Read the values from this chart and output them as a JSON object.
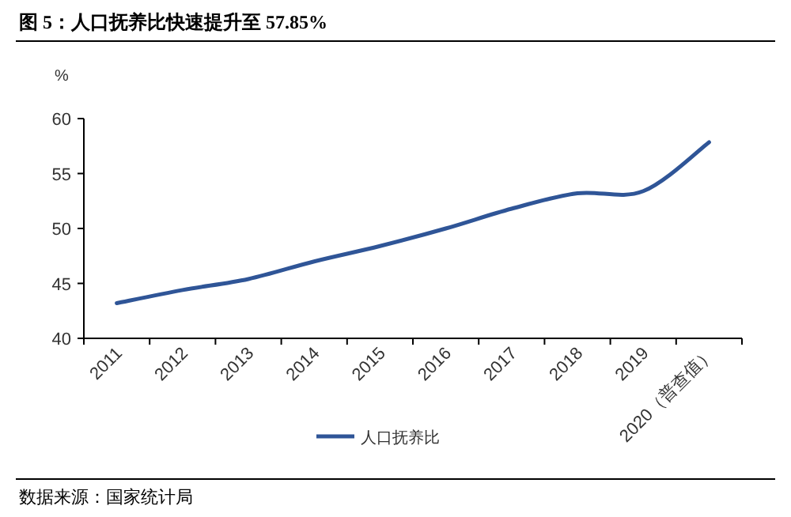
{
  "chart_data": {
    "type": "line",
    "title": "图 5：人口抚养比快速提升至 57.85%",
    "ylabel": "%",
    "categories": [
      "2011",
      "2012",
      "2013",
      "2014",
      "2015",
      "2016",
      "2017",
      "2018",
      "2019",
      "2020（普查值）"
    ],
    "series": [
      {
        "name": "人口抚养比",
        "color": "#2f5597",
        "values": [
          43.2,
          44.4,
          45.4,
          47.0,
          48.4,
          50.0,
          51.8,
          53.2,
          53.4,
          57.85
        ]
      }
    ],
    "ylim": [
      40,
      60
    ],
    "yticks": [
      40,
      45,
      50,
      55,
      60
    ],
    "grid": false,
    "legend": "bottom",
    "marker": "none",
    "line_style": "solid",
    "annotations": [
      "数据来源：国家统计局"
    ]
  }
}
